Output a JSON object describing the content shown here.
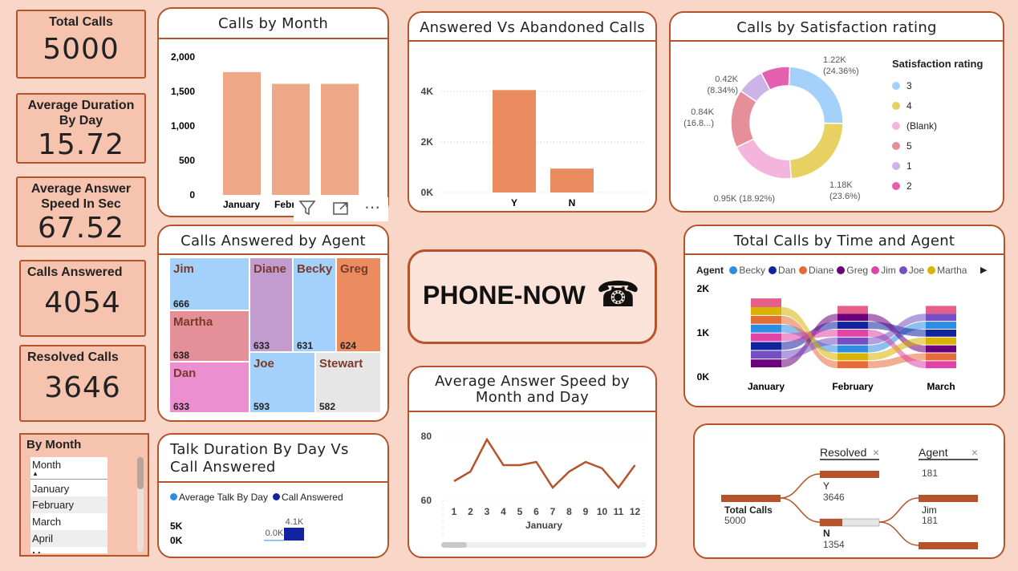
{
  "kpis": {
    "total_calls": {
      "label": "Total Calls",
      "value": "5000"
    },
    "avg_duration": {
      "label": "Average Duration By Day",
      "value": "15.72"
    },
    "avg_answer": {
      "label": "Average Answer Speed In Sec",
      "value": "67.52"
    },
    "calls_answered": {
      "label": "Calls Answered",
      "value": "4054"
    },
    "resolved": {
      "label": "Resolved Calls",
      "value": "3646"
    }
  },
  "slicer": {
    "title": "By Month",
    "header": "Month",
    "items": [
      "January",
      "February",
      "March",
      "April",
      "May"
    ]
  },
  "visual_toolbar": {
    "filter_icon": "filter-icon",
    "focus_icon": "focus-mode-icon",
    "more_icon": "more-options-icon"
  },
  "calls_by_month": {
    "title": "Calls by Month",
    "chart_data": {
      "type": "bar",
      "categories": [
        "January",
        "February",
        "March"
      ],
      "tick_labels": [
        "January",
        "Februa",
        "March"
      ],
      "values": [
        1780,
        1610,
        1610
      ],
      "y_ticks": [
        "2,000",
        "1,500",
        "1,000",
        "500",
        "0"
      ],
      "ylim": [
        0,
        2000
      ],
      "color": "#efa887"
    }
  },
  "answered_vs_abandoned": {
    "title": "Answered Vs Abandoned Calls",
    "chart_data": {
      "type": "bar",
      "categories": [
        "Y",
        "N"
      ],
      "values": [
        4054,
        946
      ],
      "y_ticks": [
        "4K",
        "2K",
        "0K"
      ],
      "ylim": [
        0,
        4500
      ],
      "color": "#ea8b60"
    }
  },
  "satisfaction": {
    "title": "Calls by Satisfaction rating",
    "legend_title": "Satisfaction rating",
    "chart_data": {
      "type": "pie",
      "slices": [
        {
          "name": "3",
          "value": 1.22,
          "color": "#a3d1fb"
        },
        {
          "name": "4",
          "value": 1.18,
          "color": "#e8d163"
        },
        {
          "name": "(Blank)",
          "value": 0.95,
          "color": "#f4b5dc"
        },
        {
          "name": "5",
          "value": 0.84,
          "color": "#e58f98"
        },
        {
          "name": "1",
          "value": 0.39,
          "color": "#ccb4e6"
        },
        {
          "name": "2",
          "value": 0.42,
          "color": "#e55fb0"
        }
      ]
    },
    "labels": [
      {
        "l1": "1.22K",
        "l2": "(24.36%)"
      },
      {
        "l1": "1.18K",
        "l2": "(23.6%)"
      },
      {
        "l1": "0.95K (18.92%)",
        "l2": ""
      },
      {
        "l1": "0.84K",
        "l2": "(16.8...)"
      },
      {
        "l1": "0.42K",
        "l2": "(8.34%)"
      }
    ]
  },
  "agents_treemap": {
    "title": "Calls Answered by Agent",
    "chart_data": {
      "type": "treemap",
      "items": [
        {
          "name": "Jim",
          "value": 666,
          "color": "#a3d1fb"
        },
        {
          "name": "Martha",
          "value": 638,
          "color": "#e58f98"
        },
        {
          "name": "Dan",
          "value": 633,
          "color": "#eb8fd0"
        },
        {
          "name": "Diane",
          "value": 633,
          "color": "#c29bcf"
        },
        {
          "name": "Becky",
          "value": 631,
          "color": "#a3d1fb"
        },
        {
          "name": "Greg",
          "value": 624,
          "color": "#ea8b60"
        },
        {
          "name": "Joe",
          "value": 593,
          "color": "#a3d1fb"
        },
        {
          "name": "Stewart",
          "value": 582,
          "color": "#e6e6e6"
        }
      ]
    }
  },
  "brand": {
    "name": "PHONE-NOW",
    "icon": "☎"
  },
  "time_agent": {
    "title": "Total Calls by Time and Agent",
    "legend_label": "Agent",
    "agents": [
      {
        "name": "Becky",
        "color": "#2d8de2"
      },
      {
        "name": "Dan",
        "color": "#12239e"
      },
      {
        "name": "Diane",
        "color": "#e66c37"
      },
      {
        "name": "Greg",
        "color": "#6b007b"
      },
      {
        "name": "Jim",
        "color": "#e044a7"
      },
      {
        "name": "Joe",
        "color": "#744ec2"
      },
      {
        "name": "Martha",
        "color": "#d9b300"
      }
    ],
    "chart_data": {
      "type": "ribbon",
      "categories": [
        "January",
        "February",
        "March"
      ],
      "totals": [
        1780,
        1610,
        1610
      ],
      "y_ticks": [
        "2K",
        "1K",
        "0K"
      ],
      "ylim": [
        0,
        2000
      ]
    }
  },
  "answer_speed": {
    "title": "Average Answer Speed by Month and Day",
    "chart_data": {
      "type": "line",
      "x": [
        1,
        2,
        3,
        4,
        5,
        6,
        7,
        8,
        9,
        10,
        11,
        12
      ],
      "values": [
        66,
        69,
        79,
        71,
        71,
        72,
        64,
        69,
        72,
        70,
        64,
        71
      ],
      "y_ticks": [
        "80",
        "60"
      ],
      "ylim": [
        55,
        85
      ],
      "xlabel": "January",
      "color": "#b5532a"
    }
  },
  "talk_duration": {
    "title": "Talk Duration By Day Vs Call Answered",
    "legend": [
      {
        "name": "Average Talk By Day",
        "color": "#2d8de2"
      },
      {
        "name": "Call Answered",
        "color": "#12239e"
      }
    ],
    "chart_data": {
      "type": "bar",
      "y_ticks": [
        "5K",
        "0K"
      ],
      "series": [
        {
          "name": "Average Talk By Day",
          "values": [
            15.72
          ],
          "label": "0.0K"
        },
        {
          "name": "Call Answered",
          "values": [
            4054
          ],
          "label": "4.1K"
        }
      ]
    }
  },
  "decomp": {
    "root": {
      "label": "Total Calls",
      "value": "5000"
    },
    "col1": {
      "title": "Resolved",
      "close": "×"
    },
    "col2": {
      "title": "Agent",
      "close": "×"
    },
    "nodes": [
      {
        "label": "Y",
        "value": "3646"
      },
      {
        "label": "N",
        "value": "1354"
      }
    ],
    "agent_nodes": [
      {
        "label": "",
        "value": "181"
      },
      {
        "label": "Jim",
        "value": "181"
      }
    ]
  }
}
